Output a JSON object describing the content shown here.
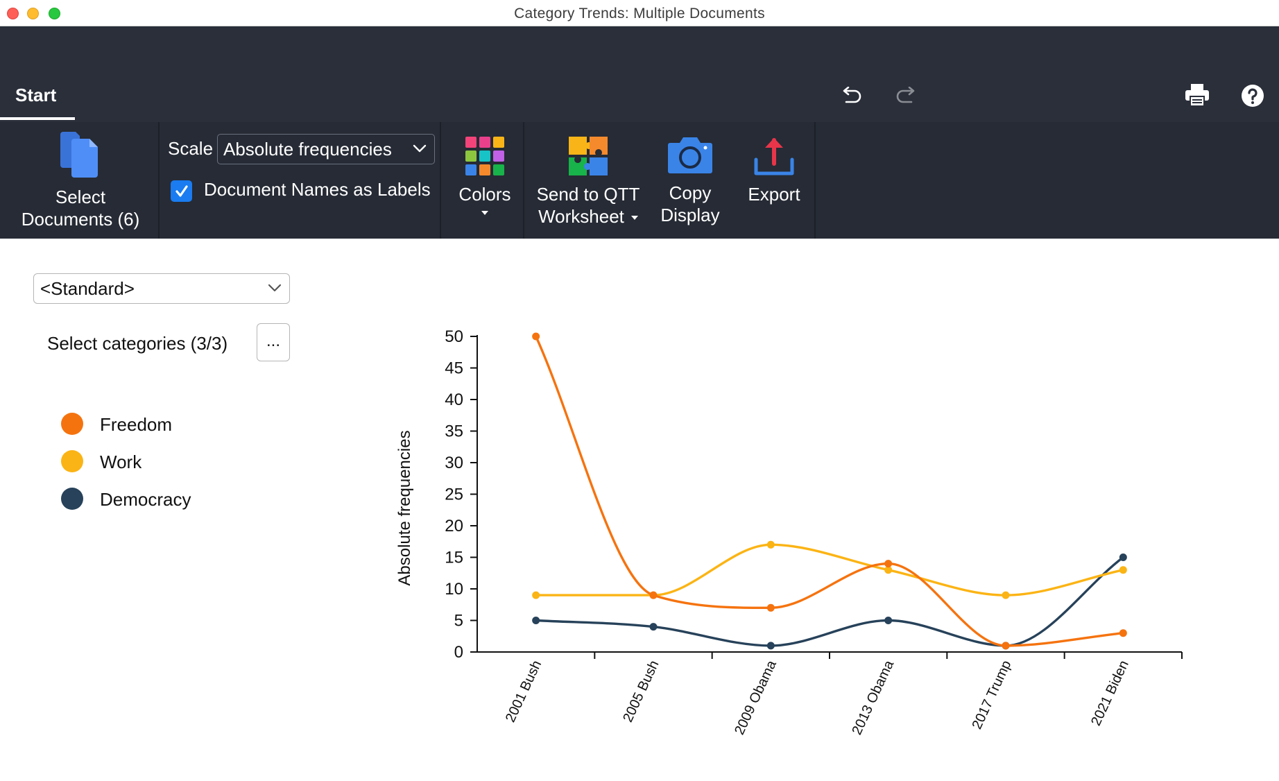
{
  "window": {
    "title": "Category Trends: Multiple Documents"
  },
  "ribbon": {
    "tab": "Start",
    "select_documents": {
      "line1": "Select",
      "line2": "Documents (6)"
    },
    "scale": {
      "label": "Scale",
      "value": "Absolute frequencies"
    },
    "doc_names_labels": {
      "label": "Document Names as Labels",
      "checked": true
    },
    "colors": {
      "label": "Colors"
    },
    "send_qtt": {
      "line1": "Send to QTT",
      "line2": "Worksheet"
    },
    "copy_display": {
      "line1": "Copy",
      "line2": "Display"
    },
    "export": {
      "label": "Export"
    },
    "icons": {
      "undo": "undo-icon",
      "redo": "redo-icon",
      "print": "printer-icon",
      "help": "help-icon"
    }
  },
  "left_panel": {
    "preset": "<Standard>",
    "select_categories": "Select categories (3/3)",
    "more_button": "...",
    "legend": [
      {
        "name": "Freedom",
        "color": "#f5730f"
      },
      {
        "name": "Work",
        "color": "#fbb415"
      },
      {
        "name": "Democracy",
        "color": "#27425a"
      }
    ]
  },
  "chart_data": {
    "type": "line",
    "ylabel": "Absolute frequencies",
    "ylim": [
      0,
      50
    ],
    "yticks": [
      0,
      5,
      10,
      15,
      20,
      25,
      30,
      35,
      40,
      45,
      50
    ],
    "categories": [
      "2001 Bush",
      "2005 Bush",
      "2009 Obama",
      "2013 Obama",
      "2017 Trump",
      "2021 Biden"
    ],
    "series": [
      {
        "name": "Freedom",
        "color": "#f5730f",
        "values": [
          50,
          9,
          7,
          14,
          1,
          3
        ]
      },
      {
        "name": "Work",
        "color": "#fbb415",
        "values": [
          9,
          9,
          17,
          13,
          9,
          13
        ]
      },
      {
        "name": "Democracy",
        "color": "#27425a",
        "values": [
          5,
          4,
          1,
          5,
          1,
          15
        ]
      }
    ]
  }
}
